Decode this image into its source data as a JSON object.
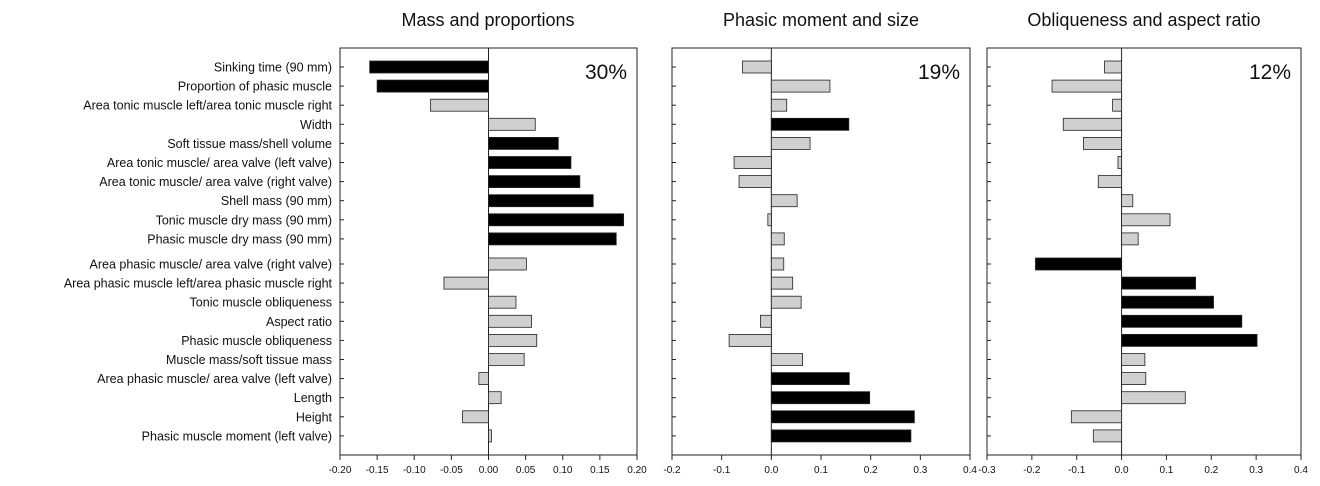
{
  "chart_data": [
    {
      "type": "bar",
      "orientation": "horizontal",
      "title": "Mass and proportions",
      "annotation": "30%",
      "xlim": [
        -0.2,
        0.2
      ],
      "xticks": [
        "-0.20",
        "-0.15",
        "-0.10",
        "-0.05",
        "0.00",
        "0.05",
        "0.10",
        "0.15",
        "0.20"
      ],
      "tick_values": [
        -0.2,
        -0.15,
        -0.1,
        -0.05,
        0.0,
        0.05,
        0.1,
        0.15,
        0.2
      ],
      "categories": [
        "Sinking time (90 mm)",
        "Proportion of phasic muscle",
        "Area tonic muscle left/area tonic muscle right",
        "Width",
        "Soft tissue mass/shell volume",
        "Area tonic muscle/ area valve (left valve)",
        "Area tonic muscle/ area valve (right valve)",
        "Shell mass (90 mm)",
        "Tonic muscle dry mass (90 mm)",
        "Phasic muscle dry mass (90 mm)",
        "Area phasic muscle/ area valve (right valve)",
        "Area phasic muscle left/area phasic muscle right",
        "Tonic muscle obliqueness",
        "Aspect ratio",
        "Phasic muscle obliqueness",
        "Muscle mass/soft tissue mass",
        "Area phasic muscle/ area valve (left valve)",
        "Length",
        "Height",
        "Phasic muscle moment (left valve)"
      ],
      "values": [
        -0.16,
        -0.15,
        -0.078,
        0.063,
        0.094,
        0.111,
        0.123,
        0.141,
        0.182,
        0.172,
        0.051,
        -0.06,
        0.037,
        0.058,
        0.065,
        0.048,
        -0.013,
        0.017,
        -0.035,
        0.004
      ],
      "highlight": [
        true,
        true,
        false,
        false,
        true,
        true,
        true,
        true,
        true,
        true,
        false,
        false,
        false,
        false,
        false,
        false,
        false,
        false,
        false,
        false
      ],
      "colors": {
        "highlight": "#000000",
        "normal": "#d0d0d0"
      }
    },
    {
      "type": "bar",
      "orientation": "horizontal",
      "title": "Phasic moment and size",
      "annotation": "19%",
      "xlim": [
        -0.2,
        0.4
      ],
      "xticks": [
        "-0.2",
        "-0.1",
        "0.0",
        "0.1",
        "0.2",
        "0.3",
        "0.4"
      ],
      "tick_values": [
        -0.2,
        -0.1,
        0.0,
        0.1,
        0.2,
        0.3,
        0.4
      ],
      "values": [
        -0.058,
        0.118,
        0.031,
        0.156,
        0.078,
        -0.075,
        -0.065,
        0.052,
        -0.007,
        0.026,
        0.025,
        0.043,
        0.06,
        -0.022,
        -0.085,
        0.063,
        0.157,
        0.198,
        0.288,
        0.281
      ],
      "highlight": [
        false,
        false,
        false,
        true,
        false,
        false,
        false,
        false,
        false,
        false,
        false,
        false,
        false,
        false,
        false,
        false,
        true,
        true,
        true,
        true
      ],
      "colors": {
        "highlight": "#000000",
        "normal": "#d0d0d0"
      }
    },
    {
      "type": "bar",
      "orientation": "horizontal",
      "title": "Obliqueness and aspect ratio",
      "annotation": "12%",
      "xlim": [
        -0.3,
        0.4
      ],
      "xticks": [
        "-0.3",
        "-0.2",
        "-0.1",
        "0.0",
        "0.1",
        "0.2",
        "0.3",
        "0.4"
      ],
      "tick_values": [
        -0.3,
        -0.2,
        -0.1,
        0.0,
        0.1,
        0.2,
        0.3,
        0.4
      ],
      "values": [
        -0.038,
        -0.155,
        -0.02,
        -0.13,
        -0.085,
        -0.008,
        -0.052,
        0.025,
        0.108,
        0.037,
        -0.192,
        0.165,
        0.205,
        0.268,
        0.302,
        0.052,
        0.054,
        0.142,
        -0.112,
        -0.063
      ],
      "highlight": [
        false,
        false,
        false,
        false,
        false,
        false,
        false,
        false,
        false,
        false,
        true,
        true,
        true,
        true,
        true,
        false,
        false,
        false,
        false,
        false
      ],
      "colors": {
        "highlight": "#000000",
        "normal": "#d0d0d0"
      }
    }
  ]
}
